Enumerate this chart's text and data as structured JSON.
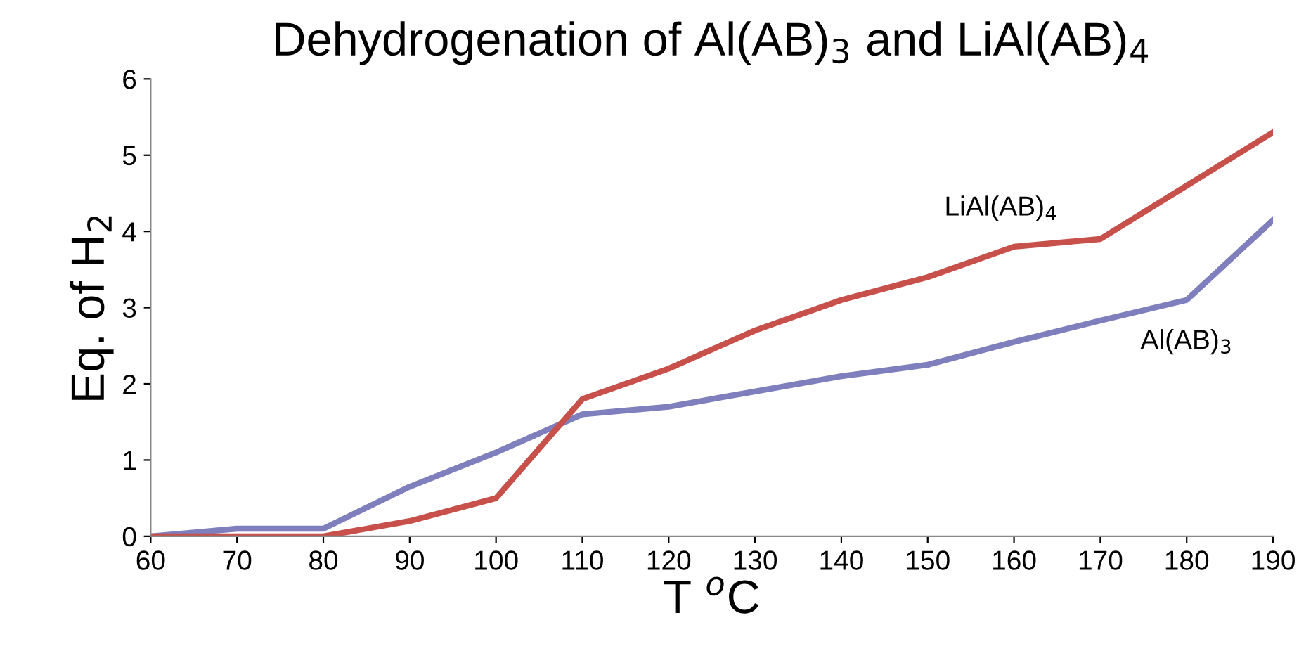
{
  "chart_data": {
    "type": "line",
    "title": "Dehydrogenation of Al(AB)$_{3}$ and LiAl(AB)$_{4}$",
    "xlabel": "T $^{o}$C",
    "ylabel": "Eq. of H$_{2}$",
    "x": [
      60,
      70,
      80,
      90,
      100,
      110,
      120,
      130,
      140,
      150,
      160,
      170,
      180,
      190
    ],
    "series": [
      {
        "name": "Al(AB)$_{3}$",
        "color": "#7f7fbd",
        "values": [
          0,
          0.1,
          0.1,
          0.65,
          1.1,
          1.6,
          1.7,
          1.9,
          2.1,
          2.25,
          2.55,
          2.83,
          3.1,
          4.15
        ]
      },
      {
        "name": "LiAl(AB)$_{4}$",
        "color": "#c8504b",
        "values": [
          0,
          0,
          0,
          0.2,
          0.5,
          1.8,
          2.2,
          2.7,
          3.1,
          3.4,
          3.8,
          3.9,
          4.6,
          5.3
        ]
      }
    ],
    "xlim": [
      60,
      190
    ],
    "xticks": [
      60,
      70,
      80,
      90,
      100,
      110,
      120,
      130,
      140,
      150,
      160,
      170,
      180,
      190
    ],
    "ylim": [
      0,
      6
    ],
    "yticks": [
      0,
      1,
      2,
      3,
      4,
      5,
      6
    ],
    "grid": false,
    "legend": false,
    "marker": "none",
    "line_style": "solid"
  }
}
